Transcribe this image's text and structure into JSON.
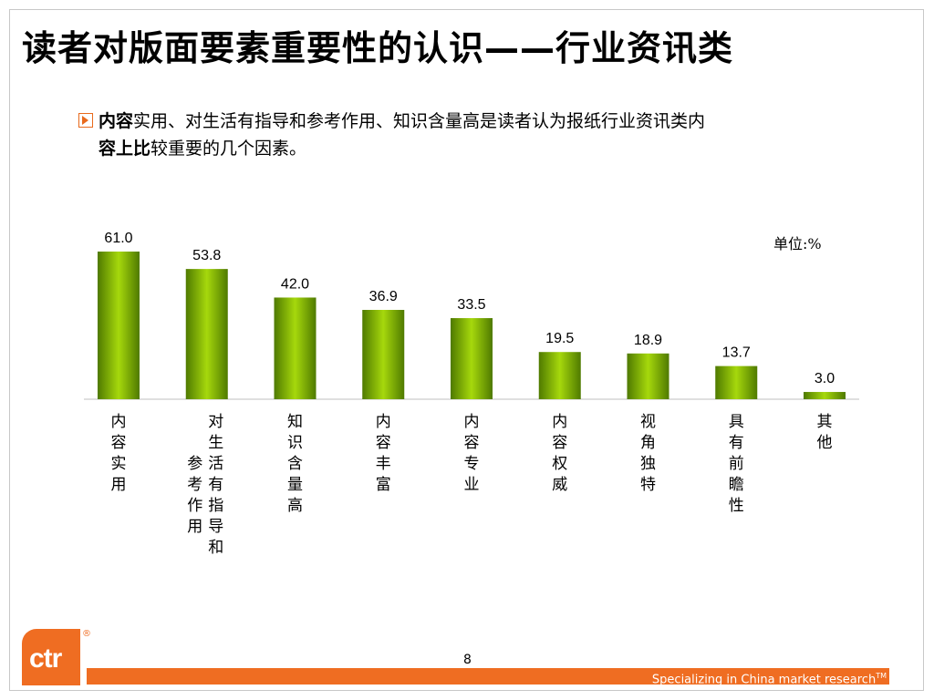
{
  "page": {
    "title": "读者对版面要素重要性的认识——行业资讯类",
    "bullet": {
      "bold1": "内容",
      "text1": "实用、对生活有指导和参考作用、知识含量高是读者认为报纸行业资讯类内",
      "bold2": "容上比",
      "text2": "较重要的几个因素。"
    },
    "unit_label": "单位:%",
    "page_number": "8",
    "footer_text": "Specializing in China market research",
    "footer_tm": "TM",
    "logo_text": "ctr",
    "logo_mark": "®"
  },
  "colors": {
    "bar_dark": "#4f7a00",
    "bar_light": "#a6d80c",
    "accent": "#ef6d22"
  },
  "chart_data": {
    "type": "bar",
    "categories": [
      "内容实用",
      "对生活有指导和参考作用",
      "知识含量高",
      "内容丰富",
      "内容专业",
      "内容权威",
      "视角独特",
      "具有前瞻性",
      "其他"
    ],
    "values": [
      61.0,
      53.8,
      42.0,
      36.9,
      33.5,
      19.5,
      18.9,
      13.7,
      3.0
    ],
    "value_labels": [
      "61.0",
      "53.8",
      "42.0",
      "36.9",
      "33.5",
      "19.5",
      "18.9",
      "13.7",
      "3.0"
    ],
    "ylim": [
      0,
      61.0
    ],
    "grid": false,
    "legend": "none"
  }
}
